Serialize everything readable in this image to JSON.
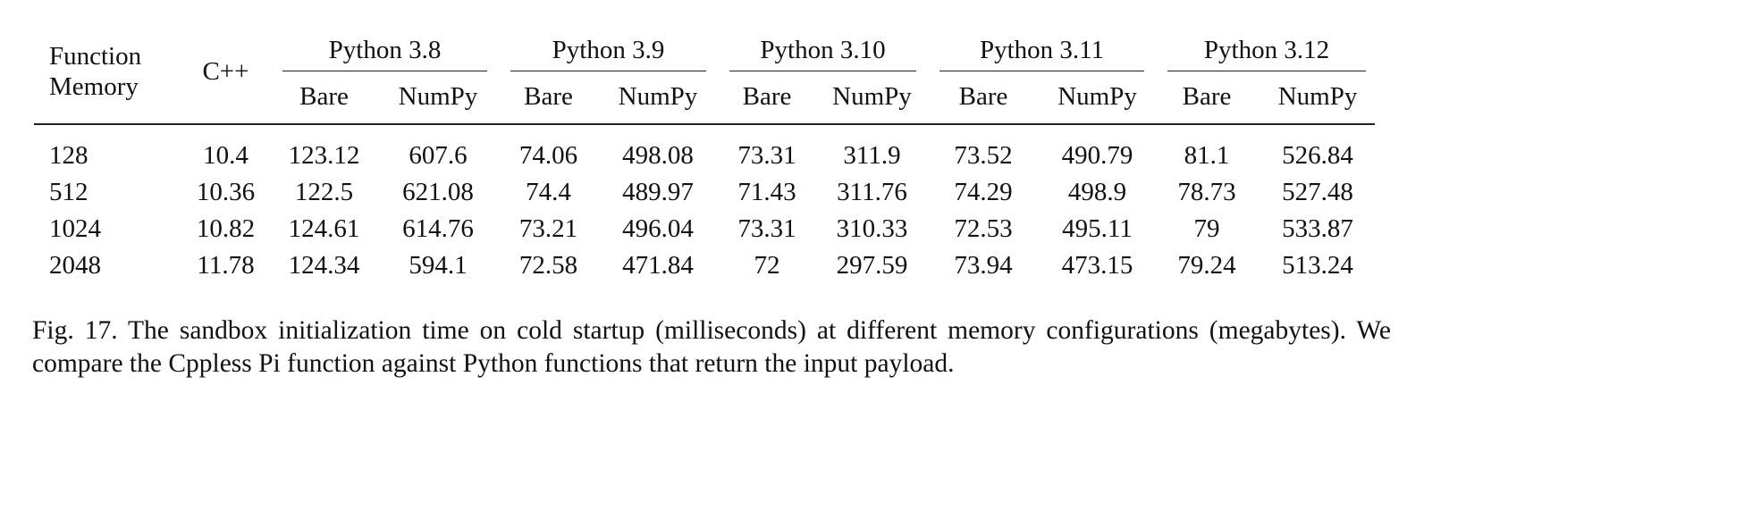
{
  "table": {
    "header": {
      "first_col": [
        "Function",
        "Memory"
      ],
      "cpp": "C++",
      "groups": [
        "Python 3.8",
        "Python 3.9",
        "Python 3.10",
        "Python 3.11",
        "Python 3.12"
      ],
      "subcols": [
        "Bare",
        "NumPy"
      ]
    },
    "rows": [
      {
        "memory": "128",
        "values": [
          "10.4",
          "123.12",
          "607.6",
          "74.06",
          "498.08",
          "73.31",
          "311.9",
          "73.52",
          "490.79",
          "81.1",
          "526.84"
        ]
      },
      {
        "memory": "512",
        "values": [
          "10.36",
          "122.5",
          "621.08",
          "74.4",
          "489.97",
          "71.43",
          "311.76",
          "74.29",
          "498.9",
          "78.73",
          "527.48"
        ]
      },
      {
        "memory": "1024",
        "values": [
          "10.82",
          "124.61",
          "614.76",
          "73.21",
          "496.04",
          "73.31",
          "310.33",
          "72.53",
          "495.11",
          "79",
          "533.87"
        ]
      },
      {
        "memory": "2048",
        "values": [
          "11.78",
          "124.34",
          "594.1",
          "72.58",
          "471.84",
          "72",
          "297.59",
          "73.94",
          "473.15",
          "79.24",
          "513.24"
        ]
      }
    ]
  },
  "caption": "Fig. 17.  The sandbox initialization time on cold startup (milliseconds) at different memory configurations (megabytes). We compare the Cppless Pi function against Python functions that return the input payload."
}
